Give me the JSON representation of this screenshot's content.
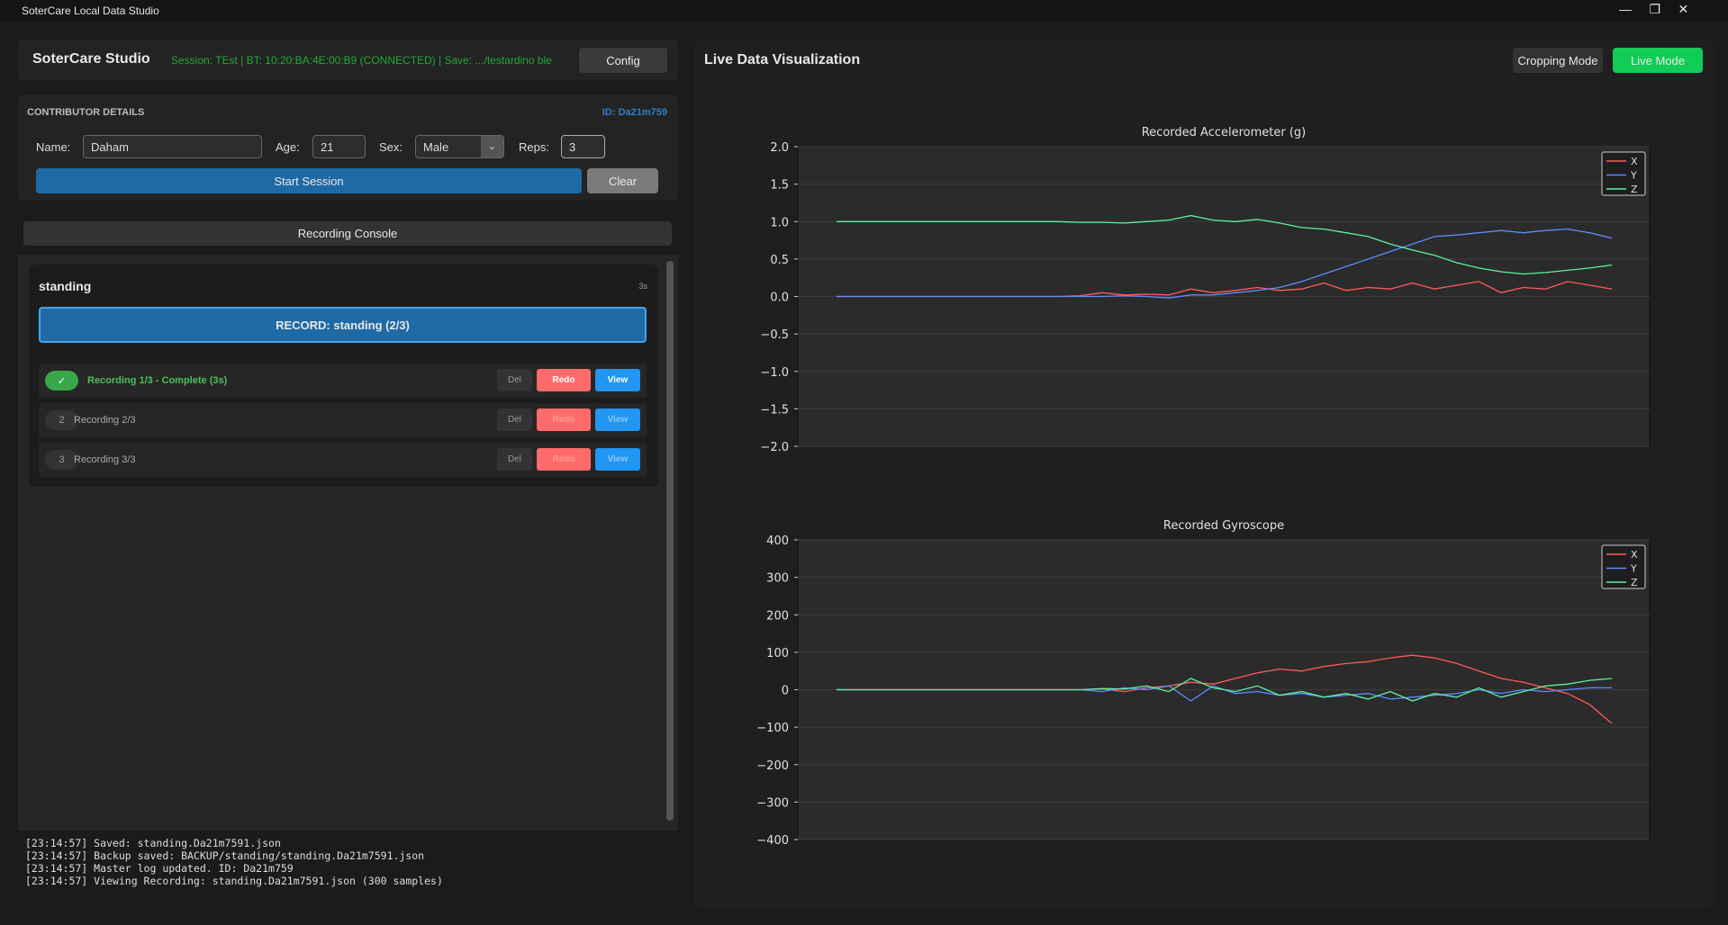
{
  "window": {
    "title": "SoterCare Local Data Studio"
  },
  "header": {
    "app_name": "SoterCare Studio",
    "status": "Session: TEst | BT: 10:20:BA:4E:00:B9 (CONNECTED) | Save: .../testardino ble",
    "config_button": "Config"
  },
  "contributor": {
    "heading": "CONTRIBUTOR DETAILS",
    "id": "ID: Da21m759",
    "name_label": "Name:",
    "name": "Daham",
    "age_label": "Age:",
    "age": "21",
    "sex_label": "Sex:",
    "sex": "Male",
    "reps_label": "Reps:",
    "reps": "3",
    "start_button": "Start Session",
    "clear_button": "Clear"
  },
  "console": {
    "title": "Recording Console",
    "activity": "standing",
    "duration": "3s",
    "record_button": "RECORD: standing (2/3)",
    "recordings": [
      {
        "status": "✓",
        "label": "Recording 1/3 - Complete (3s)",
        "del": "Del",
        "redo": "Redo",
        "view": "View"
      },
      {
        "status": "2",
        "label": "Recording 2/3",
        "del": "Del",
        "redo": "Redo",
        "view": "View"
      },
      {
        "status": "3",
        "label": "Recording 3/3",
        "del": "Del",
        "redo": "Redo",
        "view": "View"
      }
    ]
  },
  "log": [
    "[23:14:57] Saved: standing.Da21m7591.json",
    "[23:14:57] Backup saved: BACKUP/standing/standing.Da21m7591.json",
    "[23:14:57] Master log updated. ID: Da21m759",
    "[23:14:57] Viewing Recording: standing.Da21m7591.json (300 samples)"
  ],
  "visualization": {
    "title": "Live Data Visualization",
    "cropping_button": "Cropping Mode",
    "live_button": "Live Mode"
  },
  "chart_data": [
    {
      "type": "line",
      "title": "Recorded Accelerometer (g)",
      "ylim": [
        -2.0,
        2.0
      ],
      "yticks": [
        {
          "value": -2.0,
          "label": "−2.0"
        },
        {
          "value": -1.5,
          "label": "−1.5"
        },
        {
          "value": -1.0,
          "label": "−1.0"
        },
        {
          "value": -0.5,
          "label": "−0.5"
        },
        {
          "value": 0.0,
          "label": "0.0"
        },
        0.5,
        {
          "value": 1.0,
          "label": "1.0"
        },
        1.5,
        {
          "value": 2.0,
          "label": "2.0"
        }
      ],
      "grid": true,
      "legend": "upper right",
      "series": [
        {
          "name": "X",
          "color": "#ff5a5a",
          "values": [
            0,
            0,
            0,
            0,
            0,
            0,
            0,
            0,
            0,
            0,
            0,
            0.01,
            0.05,
            0.02,
            0.03,
            0.02,
            0.1,
            0.05,
            0.08,
            0.12,
            0.08,
            0.1,
            0.18,
            0.08,
            0.12,
            0.1,
            0.18,
            0.1,
            0.15,
            0.2,
            0.05,
            0.12,
            0.1,
            0.2,
            0.15,
            0.1
          ]
        },
        {
          "name": "Y",
          "color": "#5b8cff",
          "values": [
            0,
            0,
            0,
            0,
            0,
            0,
            0,
            0,
            0,
            0,
            0,
            0,
            0,
            0.01,
            0,
            -0.02,
            0.02,
            0.02,
            0.05,
            0.08,
            0.12,
            0.2,
            0.3,
            0.4,
            0.5,
            0.6,
            0.7,
            0.8,
            0.82,
            0.85,
            0.88,
            0.85,
            0.88,
            0.9,
            0.85,
            0.78
          ]
        },
        {
          "name": "Z",
          "color": "#5ff0a0",
          "values": [
            1.0,
            1.0,
            1.0,
            1.0,
            1.0,
            1.0,
            1.0,
            1.0,
            1.0,
            1.0,
            1.0,
            0.99,
            0.99,
            0.98,
            1.0,
            1.02,
            1.08,
            1.02,
            1.0,
            1.03,
            0.98,
            0.92,
            0.9,
            0.85,
            0.8,
            0.7,
            0.62,
            0.55,
            0.45,
            0.38,
            0.33,
            0.3,
            0.32,
            0.35,
            0.38,
            0.42
          ]
        }
      ]
    },
    {
      "type": "line",
      "title": "Recorded Gyroscope",
      "ylim": [
        -400,
        400
      ],
      "yticks": [
        {
          "value": -400,
          "label": "−400"
        },
        {
          "value": -300,
          "label": "−300"
        },
        {
          "value": -200,
          "label": "−200"
        },
        {
          "value": -100,
          "label": "−100"
        },
        0,
        100,
        200,
        300,
        400
      ],
      "grid": true,
      "legend": "upper right",
      "series": [
        {
          "name": "X",
          "color": "#ff5a5a",
          "values": [
            0,
            0,
            0,
            0,
            0,
            0,
            0,
            0,
            0,
            0,
            0,
            0,
            2,
            -5,
            5,
            10,
            20,
            15,
            30,
            45,
            55,
            50,
            62,
            70,
            75,
            85,
            92,
            85,
            70,
            50,
            30,
            20,
            5,
            -10,
            -40,
            -90
          ]
        },
        {
          "name": "Y",
          "color": "#5b8cff",
          "values": [
            0,
            0,
            0,
            0,
            0,
            0,
            0,
            0,
            0,
            0,
            0,
            0,
            -5,
            5,
            0,
            10,
            -30,
            10,
            -10,
            -5,
            -15,
            -10,
            -20,
            -15,
            -10,
            -25,
            -20,
            -15,
            -10,
            0,
            -10,
            0,
            -5,
            0,
            5,
            5
          ]
        },
        {
          "name": "Z",
          "color": "#5ff0a0",
          "values": [
            0,
            0,
            0,
            0,
            0,
            0,
            0,
            0,
            0,
            0,
            0,
            0,
            3,
            2,
            10,
            -5,
            30,
            5,
            -5,
            10,
            -15,
            -5,
            -20,
            -10,
            -25,
            -5,
            -30,
            -10,
            -20,
            5,
            -20,
            -5,
            10,
            15,
            25,
            30
          ]
        }
      ]
    }
  ]
}
